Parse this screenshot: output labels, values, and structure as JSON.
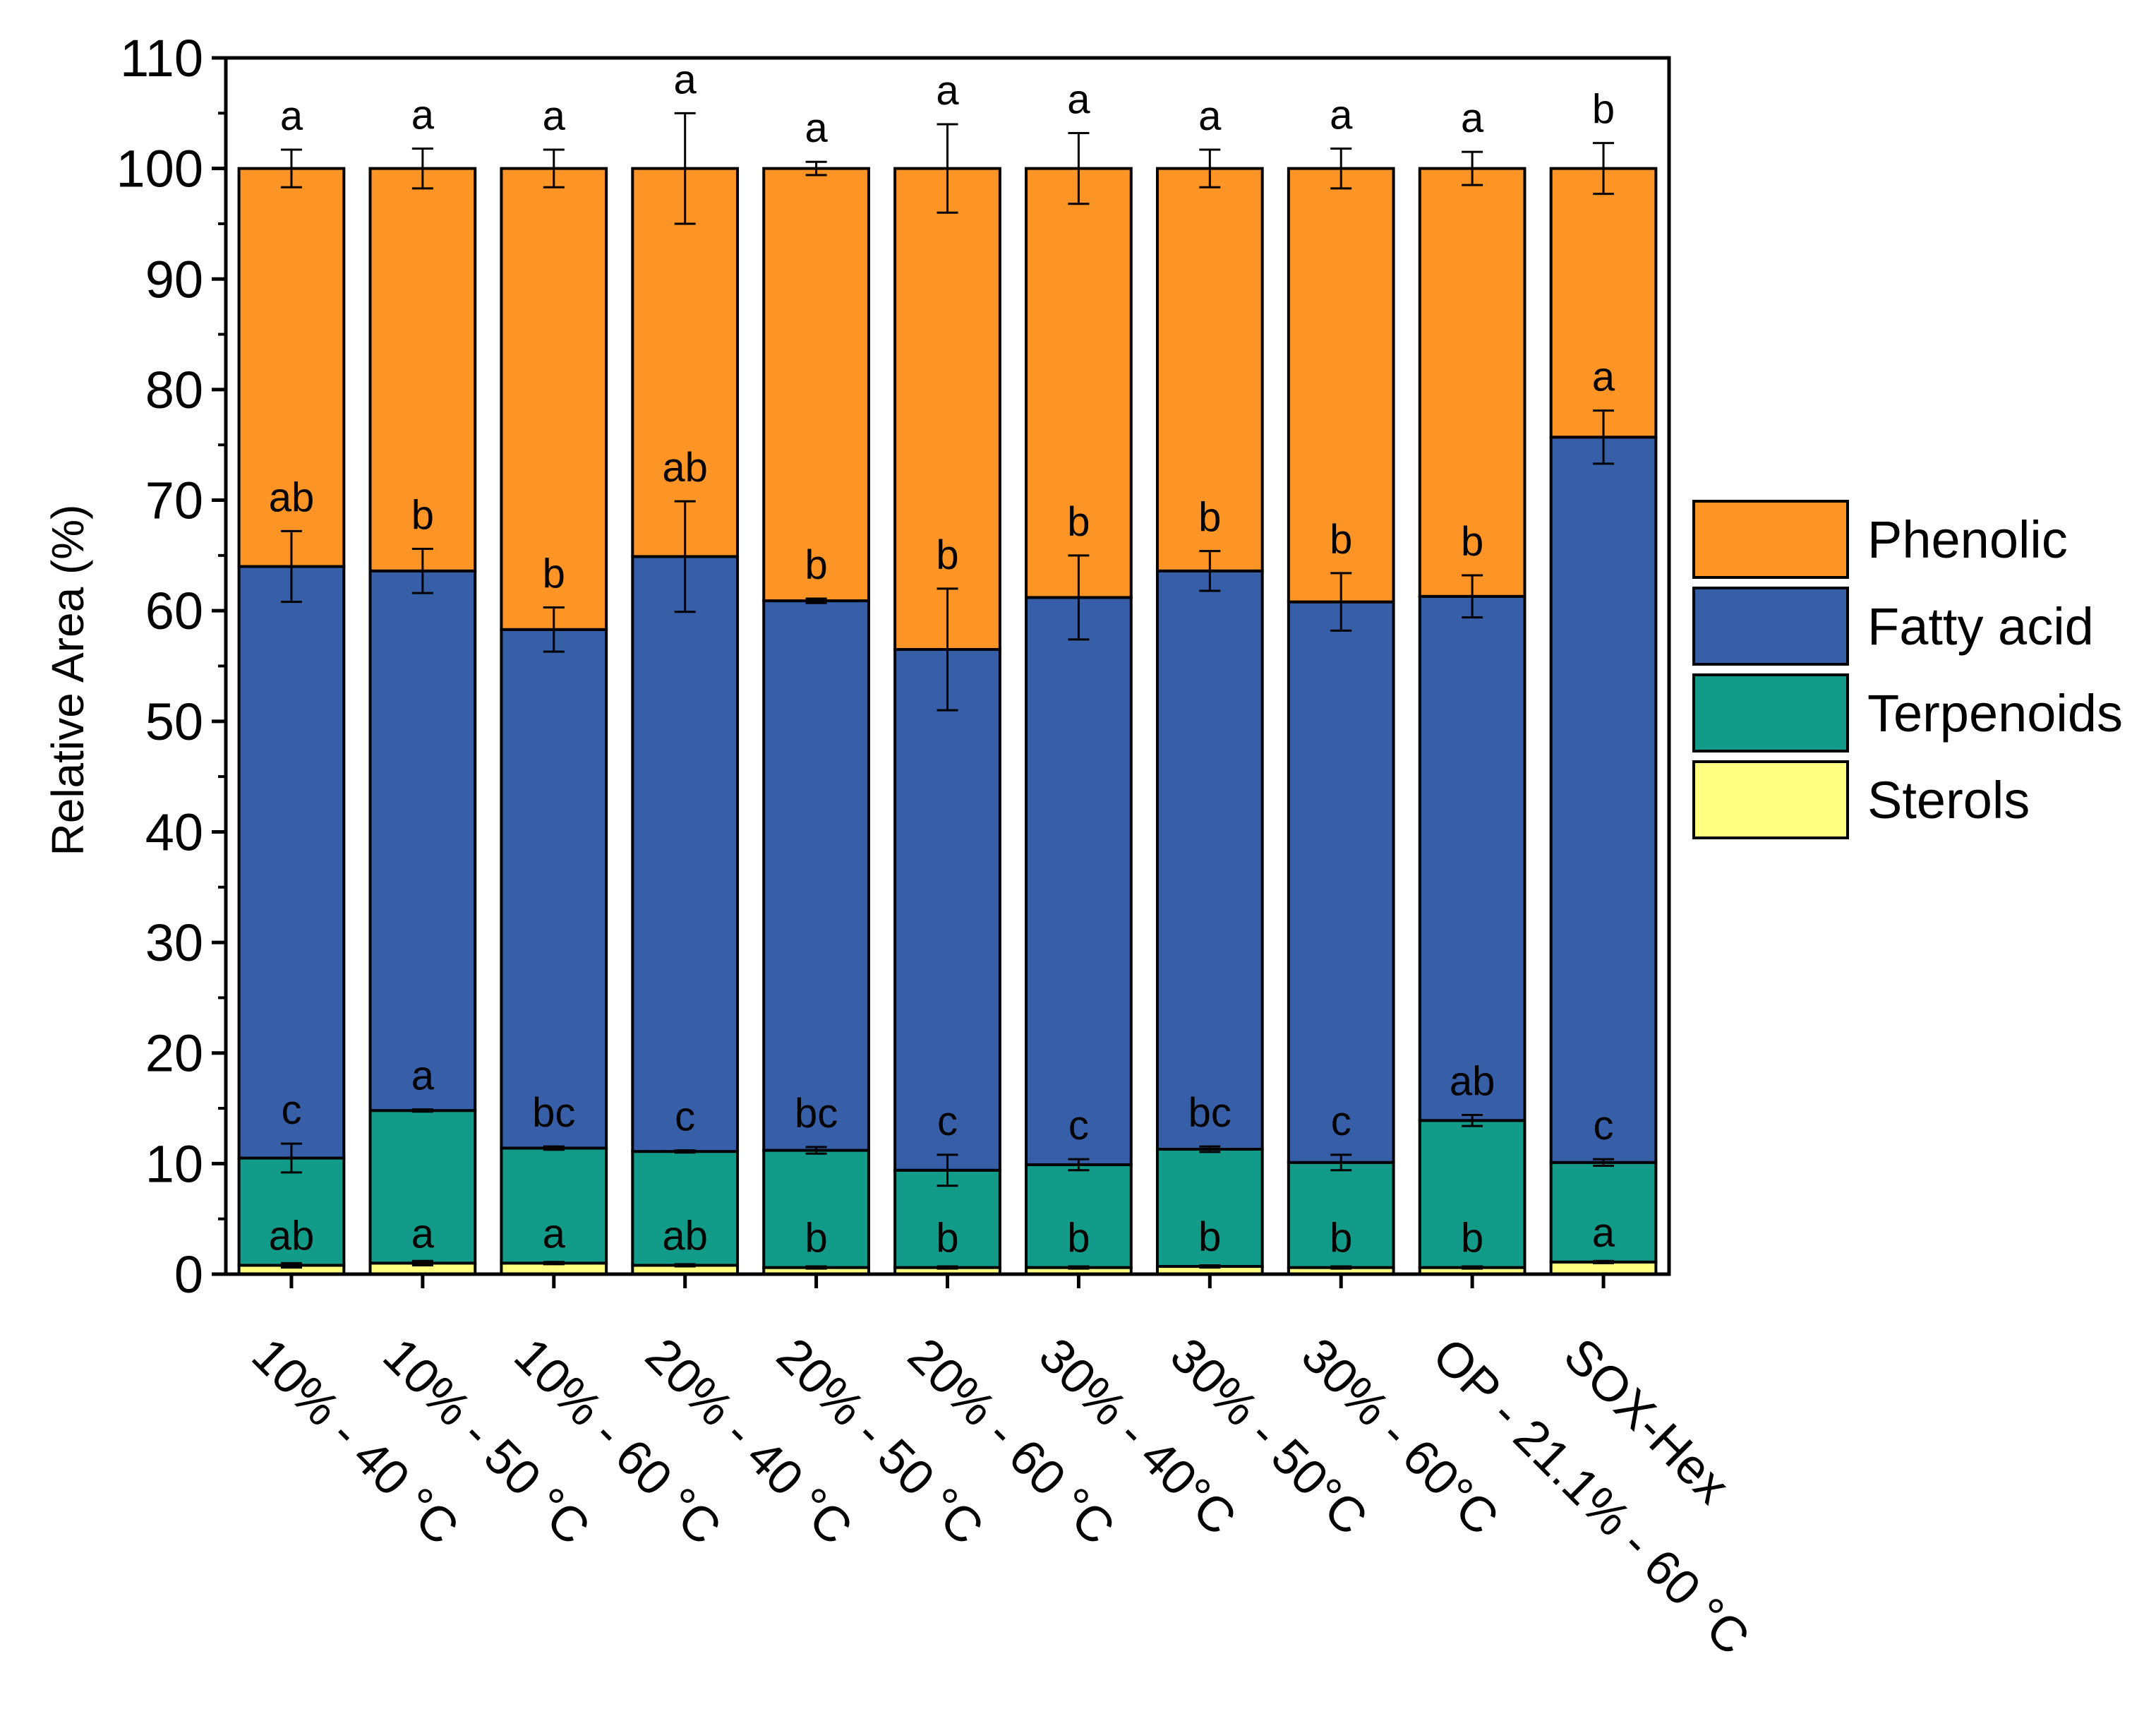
{
  "chart_data": {
    "type": "bar",
    "stacked": true,
    "title": "",
    "xlabel": "",
    "ylabel": "Relative Area (%)",
    "ylim": [
      0,
      110
    ],
    "yticks": [
      "0",
      "10",
      "20",
      "30",
      "40",
      "50",
      "60",
      "70",
      "80",
      "90",
      "100",
      "110"
    ],
    "grid": false,
    "legend_position": "right",
    "categories": [
      "10% - 40 °C",
      "10% - 50 °C",
      "10% - 60 °C",
      "20% - 40 °C",
      "20% - 50 °C",
      "20% - 60 °C",
      "30% - 40°C",
      "30% - 50°C",
      "30% - 60°C",
      "OP - 21.1% - 60 °C",
      "SOX-Hex"
    ],
    "series": [
      {
        "name": "Sterols",
        "color": "#FFFF80",
        "values": [
          0.8,
          1.0,
          1.0,
          0.8,
          0.6,
          0.6,
          0.6,
          0.7,
          0.6,
          0.6,
          1.1
        ],
        "errors": [
          0.2,
          0.2,
          0.1,
          0.1,
          0.1,
          0.1,
          0.1,
          0.1,
          0.1,
          0.1,
          0.1
        ],
        "letters": [
          "ab",
          "a",
          "a",
          "ab",
          "b",
          "b",
          "b",
          "b",
          "b",
          "b",
          "a"
        ]
      },
      {
        "name": "Terpenoids",
        "color": "#139B8A",
        "values": [
          9.7,
          13.8,
          10.4,
          10.3,
          10.6,
          8.8,
          9.3,
          10.6,
          9.5,
          13.3,
          9.0
        ],
        "errors": [
          1.3,
          0.1,
          0.15,
          0.1,
          0.3,
          1.4,
          0.5,
          0.25,
          0.7,
          0.5,
          0.3
        ],
        "letters": [
          "c",
          "a",
          "bc",
          "c",
          "bc",
          "c",
          "c",
          "bc",
          "c",
          "ab",
          "c"
        ]
      },
      {
        "name": "Fatty acid",
        "color": "#375FA8",
        "values": [
          53.5,
          48.8,
          46.9,
          53.8,
          49.7,
          47.1,
          51.3,
          52.3,
          50.7,
          47.4,
          65.6
        ],
        "errors": [
          3.2,
          2.0,
          2.0,
          5.0,
          0.2,
          5.5,
          3.8,
          1.8,
          2.6,
          1.9,
          2.4
        ],
        "letters": [
          "ab",
          "b",
          "b",
          "ab",
          "b",
          "b",
          "b",
          "b",
          "b",
          "b",
          "a"
        ]
      },
      {
        "name": "Phenolic",
        "color": "#FD9426",
        "values": [
          36.0,
          36.4,
          41.7,
          35.1,
          39.1,
          43.5,
          38.8,
          36.4,
          39.2,
          38.7,
          24.3
        ],
        "errors": [
          1.7,
          1.8,
          1.7,
          5.0,
          0.6,
          4.0,
          3.2,
          1.7,
          1.8,
          1.5,
          2.3
        ],
        "letters": [
          "a",
          "a",
          "a",
          "a",
          "a",
          "a",
          "a",
          "a",
          "a",
          "a",
          "b"
        ]
      }
    ]
  }
}
